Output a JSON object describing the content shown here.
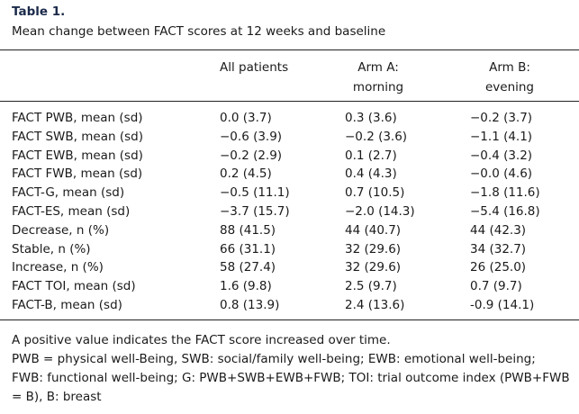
{
  "table": {
    "label": "Table 1.",
    "caption": "Mean change between FACT scores at 12 weeks and baseline",
    "headers": [
      [
        "All patients"
      ],
      [
        "Arm A:",
        "morning"
      ],
      [
        "Arm B:",
        "evening"
      ]
    ],
    "rows": [
      [
        "FACT PWB, mean (sd)",
        "0.0 (3.7)",
        "0.3 (3.6)",
        "−0.2 (3.7)"
      ],
      [
        "FACT SWB, mean (sd)",
        "−0.6 (3.9)",
        "−0.2 (3.6)",
        "−1.1 (4.1)"
      ],
      [
        "FACT EWB, mean (sd)",
        "−0.2 (2.9)",
        "0.1 (2.7)",
        "−0.4 (3.2)"
      ],
      [
        "FACT FWB, mean (sd)",
        "0.2 (4.5)",
        "0.4 (4.3)",
        "−0.0 (4.6)"
      ],
      [
        "FACT-G, mean (sd)",
        "−0.5 (11.1)",
        "0.7 (10.5)",
        "−1.8 (11.6)"
      ],
      [
        "FACT-ES, mean (sd)",
        "−3.7 (15.7)",
        "−2.0 (14.3)",
        "−5.4 (16.8)"
      ],
      [
        "Decrease, n (%)",
        "88 (41.5)",
        "44 (40.7)",
        "44 (42.3)"
      ],
      [
        "Stable, n (%)",
        "66 (31.1)",
        "32 (29.6)",
        "34 (32.7)"
      ],
      [
        "Increase, n (%)",
        "58 (27.4)",
        "32 (29.6)",
        "26 (25.0)"
      ],
      [
        "FACT TOI, mean (sd)",
        "1.6 (9.8)",
        "2.5 (9.7)",
        "0.7 (9.7)"
      ],
      [
        "FACT-B, mean (sd)",
        "0.8 (13.9)",
        "2.4 (13.6)",
        "-0.9 (14.1)"
      ]
    ],
    "footnotes": [
      "A positive value indicates the FACT score increased over time.",
      "PWB = physical well-Being, SWB: social/family well-being; EWB: emotional well-being; FWB: functional well-being; G: PWB+SWB+EWB+FWB; TOI: trial outcome index (PWB+FWB = B), B: breast"
    ]
  }
}
